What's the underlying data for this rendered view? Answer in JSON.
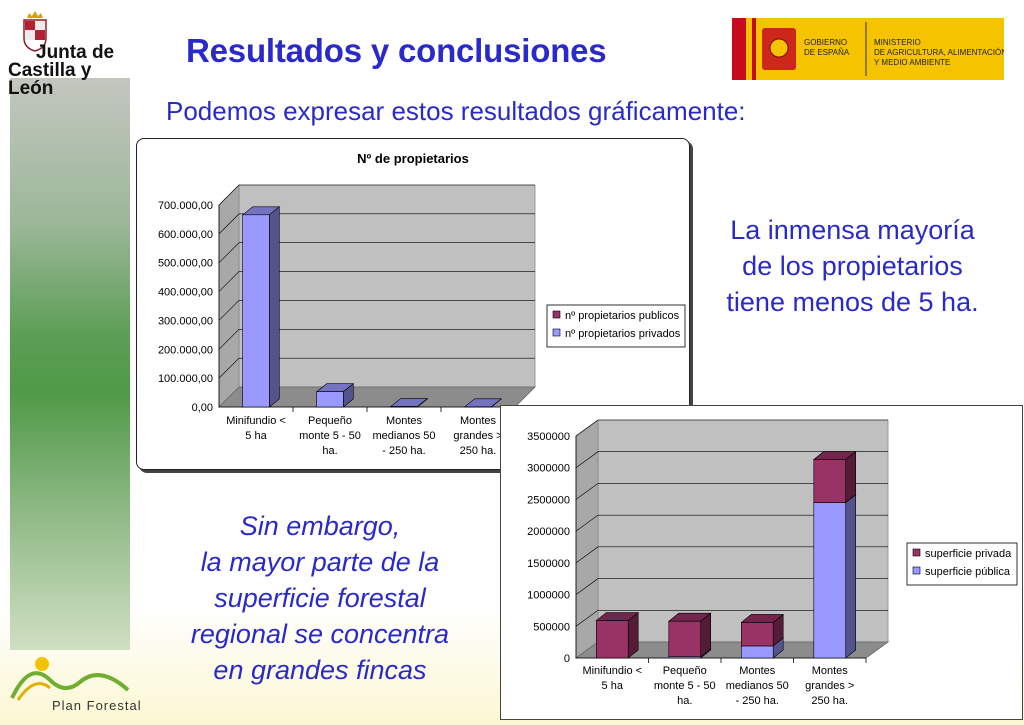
{
  "header": {
    "org_logo_line1": "Junta de",
    "org_logo_line2": "Castilla y León",
    "title": "Resultados y conclusiones",
    "gov_line1": "GOBIERNO",
    "gov_line2": "DE ESPAÑA",
    "ministry_line1": "MINISTERIO",
    "ministry_line2": "DE AGRICULTURA, ALIMENTACIÓN",
    "ministry_line3": "Y MEDIO AMBIENTE"
  },
  "subtitle": "Podemos expresar estos resultados gráficamente:",
  "note_right": [
    "La inmensa mayoría",
    "de los propietarios",
    "tiene menos de 5 ha."
  ],
  "note_left": [
    "Sin embargo,",
    "la mayor parte de la",
    "superficie forestal",
    "regional se concentra",
    "en grandes fincas"
  ],
  "footer": {
    "logo_text": "Plan Forestal"
  },
  "colors": {
    "title": "#2a2acb",
    "series_public": "#993366",
    "series_private": "#9999ff",
    "plot_bg": "#c0c0c0"
  },
  "chart_data": [
    {
      "type": "bar",
      "title": "Nº de propietarios",
      "categories": [
        [
          "Minifundio <",
          "5 ha"
        ],
        [
          "Pequeño",
          "monte 5 - 50",
          "ha."
        ],
        [
          "Montes",
          "medianos 50",
          "- 250 ha."
        ],
        [
          "Montes",
          "grandes >",
          "250 ha."
        ]
      ],
      "series": [
        {
          "name": "nº propietarios publicos",
          "values": [
            0,
            0,
            0,
            0
          ]
        },
        {
          "name": "nº propietarios privados",
          "values": [
            666000,
            53000,
            1500,
            600
          ]
        }
      ],
      "yticks": [
        "0,00",
        "100.000,00",
        "200.000,00",
        "300.000,00",
        "400.000,00",
        "500.000,00",
        "600.000,00",
        "700.000,00"
      ],
      "ylim": [
        0,
        700000
      ],
      "grid": true,
      "legend": "right"
    },
    {
      "type": "bar",
      "stacked": true,
      "categories": [
        [
          "Minifundio <",
          "5 ha"
        ],
        [
          "Pequeño",
          "monte 5 - 50",
          "ha."
        ],
        [
          "Montes",
          "medianos 50",
          "- 250 ha."
        ],
        [
          "Montes",
          "grandes >",
          "250 ha."
        ]
      ],
      "series": [
        {
          "name": "superficie pública",
          "values": [
            0,
            20000,
            190000,
            2450000
          ]
        },
        {
          "name": "superficie privada",
          "values": [
            590000,
            560000,
            370000,
            680000
          ]
        }
      ],
      "legend_order": [
        "superficie privada",
        "superficie pública"
      ],
      "yticks": [
        "0",
        "500000",
        "1000000",
        "1500000",
        "2000000",
        "2500000",
        "3000000",
        "3500000"
      ],
      "ylim": [
        0,
        3500000
      ],
      "grid": true,
      "legend": "right"
    }
  ]
}
